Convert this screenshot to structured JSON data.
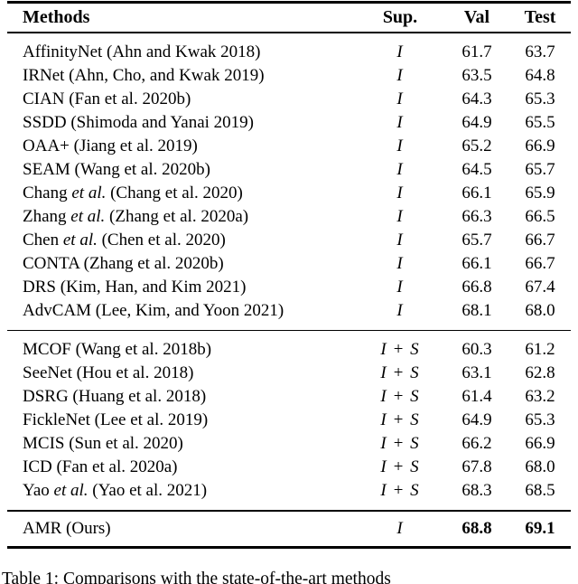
{
  "table": {
    "columns": {
      "methods": "Methods",
      "sup": "Sup.",
      "val": "Val",
      "test": "Test"
    },
    "groups": [
      {
        "supervision": "image-level",
        "rows": [
          {
            "method": "AffinityNet (Ahn and Kwak 2018)",
            "sup": "I",
            "val": "61.7",
            "test": "63.7"
          },
          {
            "method": "IRNet (Ahn, Cho, and Kwak 2019)",
            "sup": "I",
            "val": "63.5",
            "test": "64.8"
          },
          {
            "method": "CIAN (Fan et al. 2020b)",
            "sup": "I",
            "val": "64.3",
            "test": "65.3"
          },
          {
            "method": "SSDD (Shimoda and Yanai 2019)",
            "sup": "I",
            "val": "64.9",
            "test": "65.5"
          },
          {
            "method": "OAA+ (Jiang et al. 2019)",
            "sup": "I",
            "val": "65.2",
            "test": "66.9"
          },
          {
            "method": "SEAM (Wang et al. 2020b)",
            "sup": "I",
            "val": "64.5",
            "test": "65.7"
          },
          {
            "method": "Chang *et al.* (Chang et al. 2020)",
            "sup": "I",
            "val": "66.1",
            "test": "65.9"
          },
          {
            "method": "Zhang *et al.* (Zhang et al. 2020a)",
            "sup": "I",
            "val": "66.3",
            "test": "66.5"
          },
          {
            "method": "Chen *et al.* (Chen et al. 2020)",
            "sup": "I",
            "val": "65.7",
            "test": "66.7"
          },
          {
            "method": "CONTA (Zhang et al. 2020b)",
            "sup": "I",
            "val": "66.1",
            "test": "66.7"
          },
          {
            "method": "DRS (Kim, Han, and Kim 2021)",
            "sup": "I",
            "val": "66.8",
            "test": "67.4"
          },
          {
            "method": "AdvCAM (Lee, Kim, and Yoon 2021)",
            "sup": "I",
            "val": "68.1",
            "test": "68.0"
          }
        ]
      },
      {
        "supervision": "image-level-plus-saliency",
        "rows": [
          {
            "method": "MCOF (Wang et al. 2018b)",
            "sup": "I + S",
            "val": "60.3",
            "test": "61.2"
          },
          {
            "method": "SeeNet (Hou et al. 2018)",
            "sup": "I + S",
            "val": "63.1",
            "test": "62.8"
          },
          {
            "method": "DSRG (Huang et al. 2018)",
            "sup": "I + S",
            "val": "61.4",
            "test": "63.2"
          },
          {
            "method": "FickleNet (Lee et al. 2019)",
            "sup": "I + S",
            "val": "64.9",
            "test": "65.3"
          },
          {
            "method": "MCIS (Sun et al. 2020)",
            "sup": "I + S",
            "val": "66.2",
            "test": "66.9"
          },
          {
            "method": "ICD (Fan et al. 2020a)",
            "sup": "I + S",
            "val": "67.8",
            "test": "68.0"
          },
          {
            "method": "Yao *et al.* (Yao et al. 2021)",
            "sup": "I + S",
            "val": "68.3",
            "test": "68.5"
          }
        ]
      },
      {
        "supervision": "ours",
        "rows": [
          {
            "method": "AMR (Ours)",
            "sup": "I",
            "val": "68.8",
            "test": "69.1",
            "bold": true
          }
        ]
      }
    ]
  },
  "caption": "Table 1: Comparisons with the state-of-the-art methods"
}
